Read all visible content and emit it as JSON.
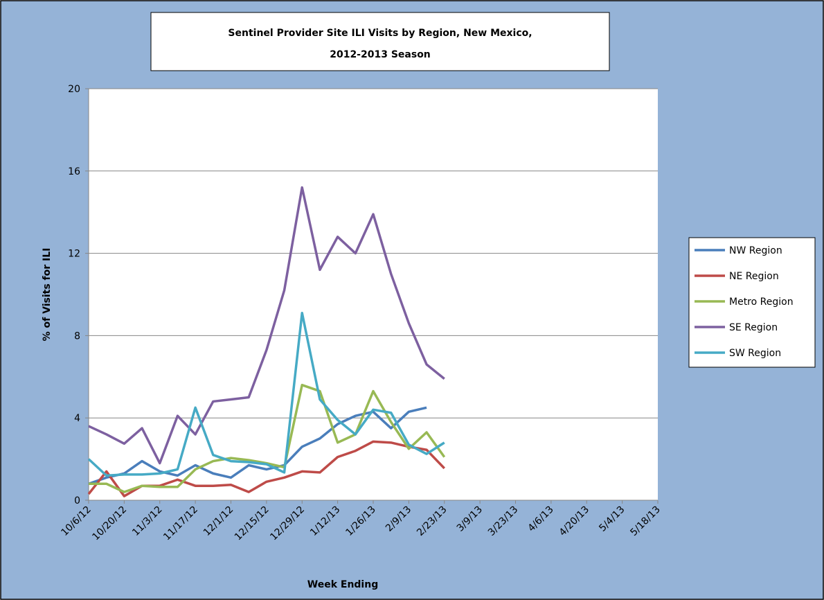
{
  "chart_data": {
    "type": "line",
    "title": [
      "Sentinel Provider Site ILI Visits by Region, New Mexico,",
      "2012-2013 Season"
    ],
    "xlabel": "Week Ending",
    "ylabel": "% of Visits  for ILI",
    "categories": [
      "10/6/12",
      null,
      "10/20/12",
      null,
      "11/3/12",
      null,
      "11/17/12",
      null,
      "12/1/12",
      null,
      "12/15/12",
      null,
      "12/29/12",
      null,
      "1/12/13",
      null,
      "1/26/13",
      null,
      "2/9/13",
      null,
      "2/23/13",
      null,
      "3/9/13",
      null,
      "3/23/13",
      null,
      "4/6/13",
      null,
      "4/20/13",
      null,
      "5/4/13",
      null,
      "5/18/13"
    ],
    "series": [
      {
        "name": "NW Region",
        "color": "#4a7ebb",
        "values": [
          0.8,
          1.1,
          1.3,
          1.9,
          1.4,
          1.2,
          1.7,
          1.3,
          1.1,
          1.7,
          1.5,
          1.7,
          2.6,
          3.0,
          3.7,
          4.1,
          4.3,
          3.5,
          4.3,
          4.5,
          null,
          null,
          null,
          null,
          null,
          null,
          null,
          null,
          null,
          null,
          null,
          null,
          null
        ]
      },
      {
        "name": "NE Region",
        "color": "#be4b48",
        "values": [
          0.3,
          1.4,
          0.2,
          0.7,
          0.7,
          1.0,
          0.7,
          0.7,
          0.75,
          0.4,
          0.9,
          1.1,
          1.4,
          1.35,
          2.1,
          2.4,
          2.85,
          2.8,
          2.6,
          2.45,
          1.55,
          null,
          null,
          null,
          null,
          null,
          null,
          null,
          null,
          null,
          null,
          null,
          null
        ]
      },
      {
        "name": "Metro Region",
        "color": "#98b954",
        "values": [
          0.8,
          0.8,
          0.4,
          0.7,
          0.65,
          0.65,
          1.5,
          1.9,
          2.05,
          1.95,
          1.8,
          1.6,
          5.6,
          5.3,
          2.8,
          3.2,
          5.3,
          3.8,
          2.5,
          3.3,
          2.1,
          null,
          null,
          null,
          null,
          null,
          null,
          null,
          null,
          null,
          null,
          null,
          null
        ]
      },
      {
        "name": "SE Region",
        "color": "#7d60a0",
        "values": [
          3.6,
          3.2,
          2.75,
          3.5,
          1.8,
          4.1,
          3.2,
          4.8,
          4.9,
          5.0,
          7.3,
          10.2,
          15.2,
          11.2,
          12.8,
          12.0,
          13.9,
          11.0,
          8.6,
          6.6,
          5.9,
          null,
          null,
          null,
          null,
          null,
          null,
          null,
          null,
          null,
          null,
          null,
          null
        ]
      },
      {
        "name": "SW Region",
        "color": "#46aac5",
        "values": [
          2.0,
          1.2,
          1.25,
          1.25,
          1.3,
          1.5,
          4.5,
          2.2,
          1.9,
          1.85,
          1.75,
          1.35,
          9.1,
          4.9,
          3.9,
          3.2,
          4.4,
          4.25,
          2.7,
          2.25,
          2.8,
          null,
          null,
          null,
          null,
          null,
          null,
          null,
          null,
          null,
          null,
          null,
          null
        ]
      }
    ],
    "ylim": [
      0,
      20
    ],
    "yticks": [
      0,
      4,
      8,
      12,
      16,
      20
    ],
    "grid": true,
    "legend": "right"
  }
}
